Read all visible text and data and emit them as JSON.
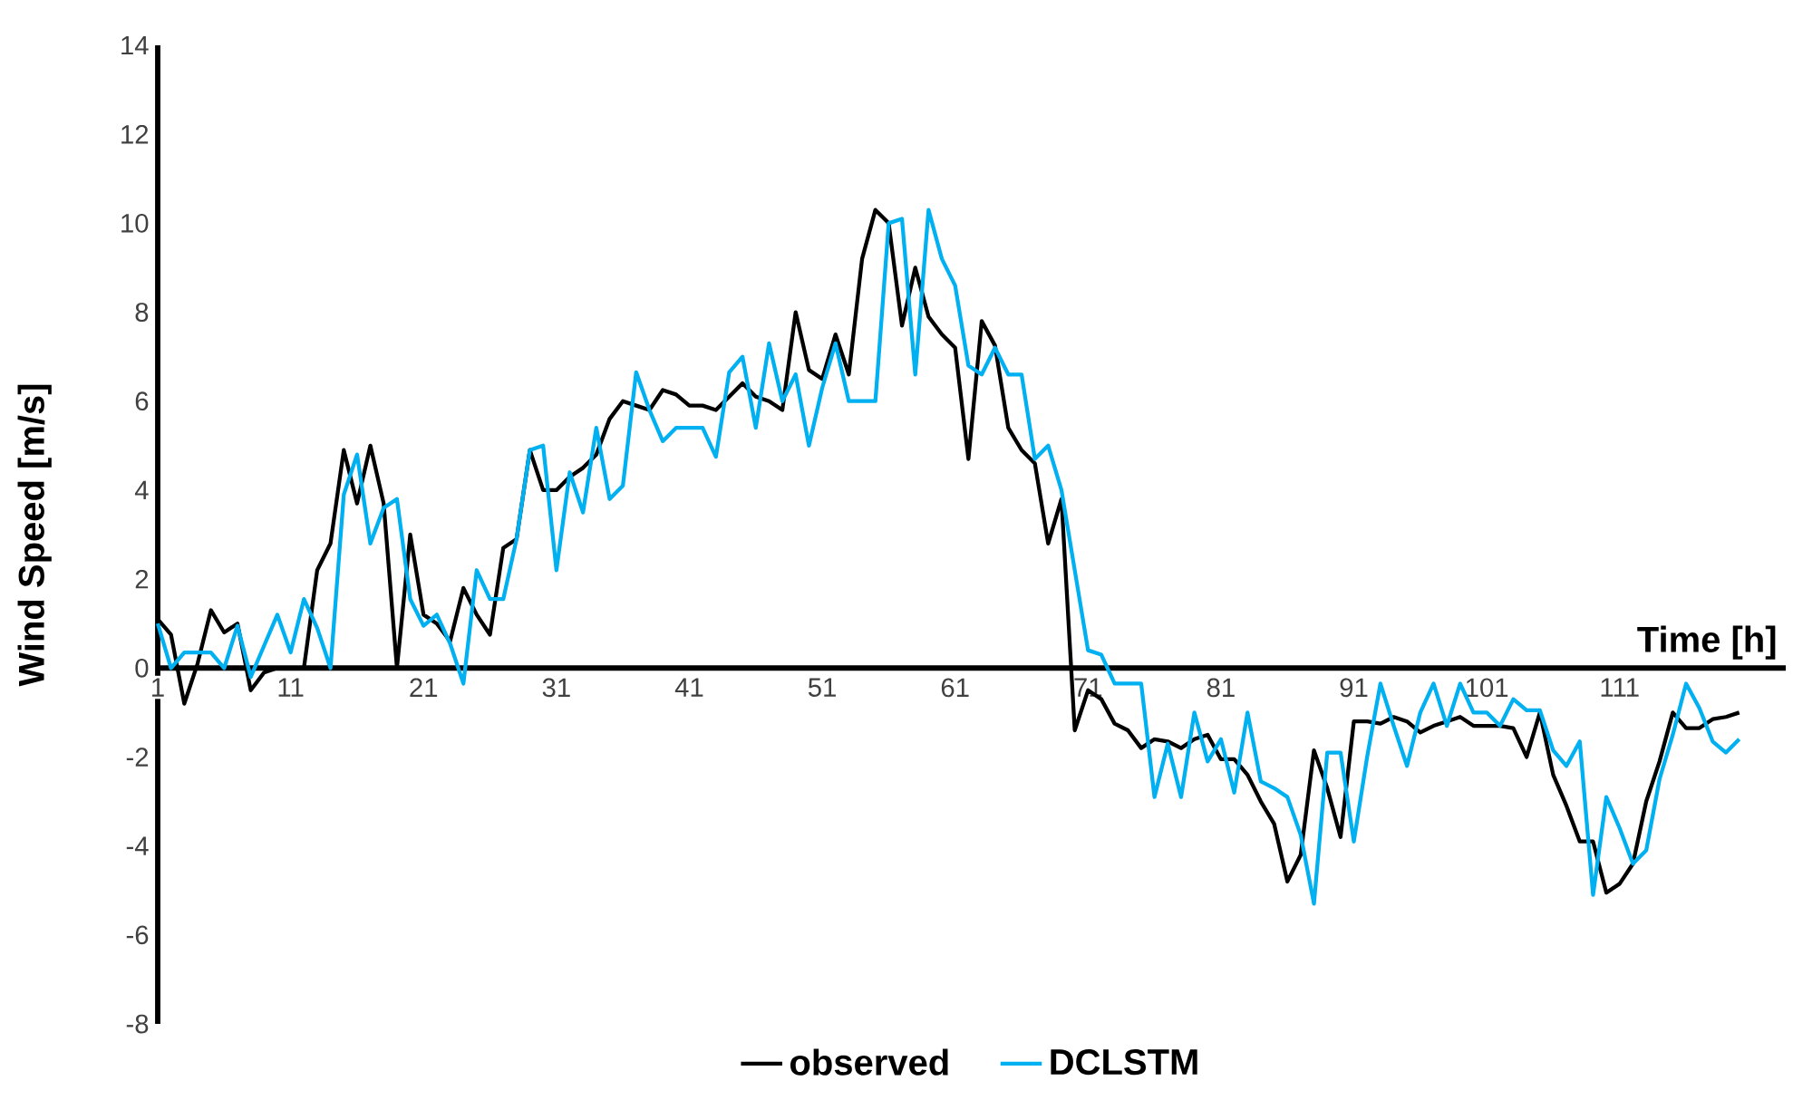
{
  "chart_data": {
    "type": "line",
    "xlabel": "Time [h]",
    "ylabel": "Wind Speed [m/s]",
    "categories": [
      "1",
      null,
      null,
      null,
      null,
      null,
      null,
      null,
      null,
      null,
      "11",
      null,
      null,
      null,
      null,
      null,
      null,
      null,
      null,
      null,
      "21",
      null,
      null,
      null,
      null,
      null,
      null,
      null,
      null,
      null,
      "31",
      null,
      null,
      null,
      null,
      null,
      null,
      null,
      null,
      null,
      "41",
      null,
      null,
      null,
      null,
      null,
      null,
      null,
      null,
      null,
      "51",
      null,
      null,
      null,
      null,
      null,
      null,
      null,
      null,
      null,
      "61",
      null,
      null,
      null,
      null,
      null,
      null,
      null,
      null,
      null,
      "71",
      null,
      null,
      null,
      null,
      null,
      null,
      null,
      null,
      null,
      "81",
      null,
      null,
      null,
      null,
      null,
      null,
      null,
      null,
      null,
      "91",
      null,
      null,
      null,
      null,
      null,
      null,
      null,
      null,
      null,
      "101",
      null,
      null,
      null,
      null,
      null,
      null,
      null,
      null,
      null,
      "111",
      null,
      null,
      null,
      null,
      null,
      null,
      null,
      null,
      null
    ],
    "series": [
      {
        "name": "observed",
        "color": "#000000",
        "values": [
          1.1,
          0.75,
          -0.8,
          0.1,
          1.3,
          0.8,
          1.0,
          -0.5,
          -0.1,
          0,
          0,
          0,
          2.2,
          2.8,
          4.9,
          3.7,
          5.0,
          3.7,
          0,
          3.0,
          1.2,
          1.0,
          0.6,
          1.8,
          1.2,
          0.75,
          2.7,
          2.9,
          4.9,
          4.0,
          4.0,
          4.3,
          4.5,
          4.8,
          5.6,
          6.0,
          5.9,
          5.8,
          6.25,
          6.15,
          5.9,
          5.9,
          5.8,
          6.1,
          6.4,
          6.1,
          6.0,
          5.8,
          8.0,
          6.7,
          6.5,
          7.5,
          6.6,
          9.2,
          10.3,
          10.0,
          7.7,
          9.0,
          7.9,
          7.5,
          7.2,
          4.7,
          7.8,
          7.25,
          5.4,
          4.9,
          4.6,
          2.8,
          3.8,
          -1.4,
          -0.5,
          -0.7,
          -1.25,
          -1.4,
          -1.8,
          -1.6,
          -1.65,
          -1.8,
          -1.6,
          -1.5,
          -2.05,
          -2.05,
          -2.4,
          -3.0,
          -3.5,
          -4.8,
          -4.2,
          -1.85,
          -2.7,
          -3.8,
          -1.2,
          -1.2,
          -1.25,
          -1.1,
          -1.2,
          -1.45,
          -1.3,
          -1.2,
          -1.1,
          -1.3,
          -1.3,
          -1.3,
          -1.35,
          -2.0,
          -1.0,
          -2.4,
          -3.1,
          -3.9,
          -3.9,
          -5.05,
          -4.85,
          -4.4,
          -3.0,
          -2.1,
          -1.0,
          -1.35,
          -1.35,
          -1.15,
          -1.1,
          -1.0
        ]
      },
      {
        "name": "DCLSTM",
        "color": "#00b0f0",
        "values": [
          1.0,
          0,
          0.35,
          0.35,
          0.35,
          0,
          0.95,
          -0.2,
          0.5,
          1.2,
          0.35,
          1.55,
          0.9,
          0,
          3.9,
          4.8,
          2.8,
          3.6,
          3.8,
          1.55,
          0.95,
          1.2,
          0.55,
          -0.35,
          2.2,
          1.55,
          1.55,
          2.9,
          4.9,
          5.0,
          2.2,
          4.4,
          3.5,
          5.4,
          3.8,
          4.1,
          6.65,
          5.8,
          5.1,
          5.4,
          5.4,
          5.4,
          4.75,
          6.65,
          7.0,
          5.4,
          7.3,
          6.0,
          6.6,
          5.0,
          6.3,
          7.3,
          6.0,
          6.0,
          6.0,
          10.0,
          10.1,
          6.6,
          10.3,
          9.2,
          8.6,
          6.8,
          6.6,
          7.2,
          6.6,
          6.6,
          4.7,
          5.0,
          4.0,
          2.2,
          0.4,
          0.3,
          -0.35,
          -0.35,
          -0.35,
          -2.9,
          -1.7,
          -2.9,
          -1.0,
          -2.1,
          -1.6,
          -2.8,
          -1.0,
          -2.55,
          -2.7,
          -2.9,
          -3.75,
          -5.3,
          -1.9,
          -1.9,
          -3.9,
          -2.0,
          -0.35,
          -1.3,
          -2.2,
          -1.0,
          -0.35,
          -1.3,
          -0.35,
          -1.0,
          -1.0,
          -1.3,
          -0.7,
          -0.95,
          -0.95,
          -1.85,
          -2.2,
          -1.65,
          -5.1,
          -2.9,
          -3.6,
          -4.4,
          -4.1,
          -2.5,
          -1.5,
          -0.35,
          -0.9,
          -1.65,
          -1.9,
          -1.6
        ]
      }
    ],
    "ylim": [
      -8,
      14
    ],
    "yticks": [
      -8,
      -6,
      -4,
      -2,
      0,
      2,
      4,
      6,
      8,
      10,
      12,
      14
    ],
    "legend": "bottom",
    "line_style": "solid"
  }
}
